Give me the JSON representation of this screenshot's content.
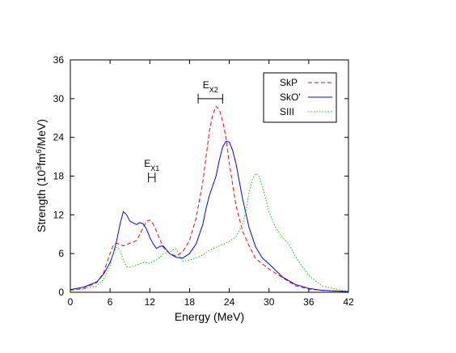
{
  "chart_data": {
    "type": "line",
    "title": "",
    "xlabel": "Energy (MeV)",
    "ylabel": {
      "prefix": "Strength (10",
      "sup1": "3",
      "mid": "fm",
      "sup2": "6",
      "suffix": "/MeV)"
    },
    "xlim": [
      0,
      42
    ],
    "ylim": [
      0,
      36
    ],
    "xticks": [
      0,
      6,
      12,
      18,
      24,
      30,
      36,
      42
    ],
    "yticks": [
      0,
      6,
      12,
      18,
      24,
      30,
      36
    ],
    "grid": false,
    "legend_position": "top-right",
    "series": [
      {
        "name": "SkP",
        "style": "dashed",
        "color": "#ff0000",
        "x": [
          0,
          2,
          4,
          5,
          6,
          6.5,
          7,
          7.5,
          8,
          9,
          10,
          11,
          11.5,
          12,
          12.5,
          13,
          14,
          15,
          16,
          17,
          18,
          19,
          20,
          20.5,
          21,
          21.5,
          22,
          22.5,
          23,
          23.5,
          24,
          25,
          26,
          27,
          28,
          30,
          32,
          34,
          36,
          38,
          40,
          42
        ],
        "y": [
          0.3,
          0.6,
          1.5,
          3.0,
          6.0,
          7.3,
          7.6,
          7.4,
          7.2,
          7.6,
          8.0,
          10.0,
          11.0,
          11.2,
          10.6,
          9.5,
          7.0,
          6.0,
          5.6,
          6.3,
          8.0,
          11.5,
          17.0,
          21.0,
          25.0,
          27.5,
          28.8,
          28.3,
          26.5,
          24.0,
          20.0,
          13.5,
          9.5,
          7.2,
          5.2,
          3.6,
          2.3,
          1.0,
          0.5,
          0.3,
          0.2,
          0.1
        ]
      },
      {
        "name": "SkO'",
        "style": "solid",
        "color": "#0000ff",
        "x": [
          0,
          2,
          4,
          5,
          6,
          6.5,
          7,
          7.5,
          8,
          8.5,
          9,
          10,
          10.5,
          11,
          11.5,
          12,
          12.5,
          13,
          13.5,
          14,
          15,
          16,
          17,
          18,
          19,
          20,
          20.5,
          21,
          22,
          22.5,
          23,
          23.5,
          24,
          24.5,
          25,
          26,
          27,
          28,
          29,
          30,
          31,
          32,
          34,
          36,
          38,
          40,
          42
        ],
        "y": [
          0.4,
          0.8,
          1.6,
          2.8,
          4.6,
          6.0,
          8.0,
          10.5,
          12.5,
          12.0,
          11.0,
          10.5,
          10.8,
          10.6,
          9.8,
          8.5,
          7.5,
          6.8,
          7.1,
          7.2,
          6.0,
          5.4,
          5.3,
          6.0,
          7.5,
          10.5,
          13.0,
          15.0,
          18.0,
          20.5,
          22.5,
          23.4,
          23.3,
          22.0,
          20.0,
          14.5,
          10.0,
          7.0,
          5.3,
          4.4,
          3.4,
          2.4,
          1.2,
          0.6,
          0.3,
          0.2,
          0.1
        ]
      },
      {
        "name": "SIII",
        "style": "dotted",
        "color": "#00cc00",
        "x": [
          0,
          2,
          4,
          5,
          6,
          6.5,
          7,
          7.5,
          8,
          8.5,
          9,
          10,
          11,
          12,
          13,
          14,
          15,
          15.5,
          16,
          16.5,
          17,
          18,
          19,
          20,
          21,
          22,
          23,
          24,
          25,
          26,
          26.5,
          27,
          27.5,
          28,
          28.5,
          29,
          30,
          31,
          32,
          33,
          34,
          35,
          36,
          38,
          40,
          42
        ],
        "y": [
          0.3,
          0.5,
          1.0,
          2.0,
          4.0,
          6.2,
          7.0,
          6.5,
          5.0,
          4.0,
          3.9,
          4.2,
          4.6,
          4.5,
          5.0,
          5.9,
          6.2,
          6.6,
          6.7,
          5.8,
          4.8,
          5.0,
          5.3,
          5.8,
          6.5,
          7.0,
          7.4,
          7.9,
          8.6,
          10.5,
          12.5,
          15.5,
          17.5,
          18.4,
          18.0,
          16.5,
          12.5,
          10.0,
          8.5,
          7.5,
          5.5,
          4.0,
          2.6,
          1.0,
          0.5,
          0.2
        ]
      }
    ],
    "annotations": [
      {
        "base": "E",
        "sub": "X1",
        "range": [
          11.8,
          12.8
        ],
        "y": 17.8
      },
      {
        "base": "E",
        "sub": "X2",
        "range": [
          19.3,
          23.0
        ],
        "y": 30.0
      }
    ]
  },
  "colors": {
    "axis": "#000000",
    "background": "#ffffff"
  }
}
